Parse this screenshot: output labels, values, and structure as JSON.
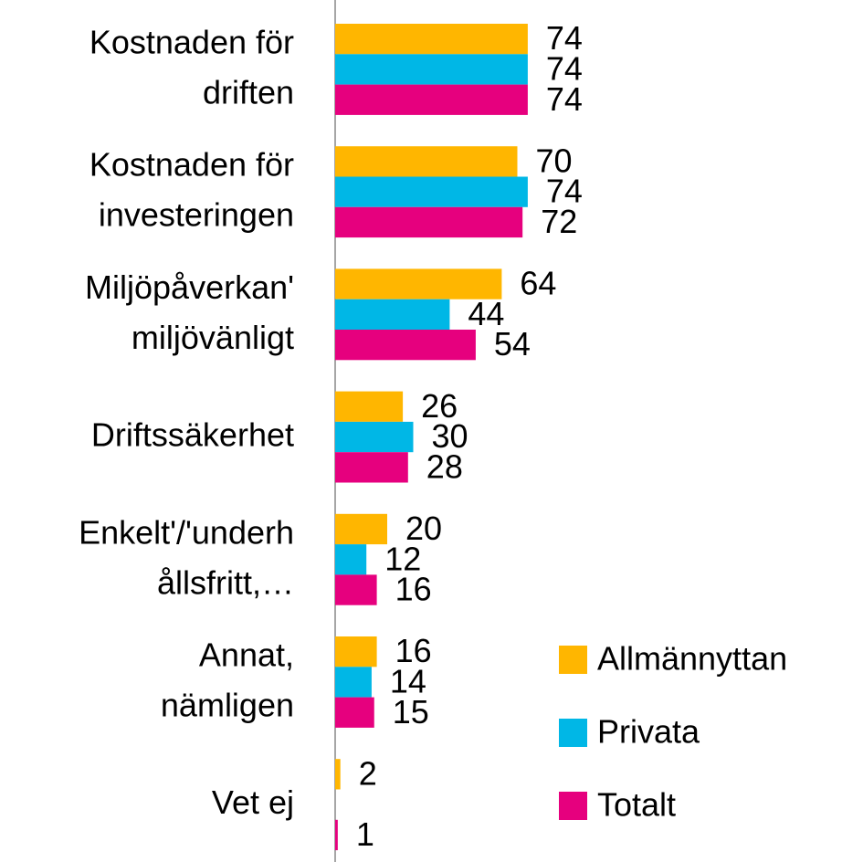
{
  "chart_data": {
    "type": "bar",
    "orientation": "horizontal",
    "categories": [
      "Kostnaden för\ndriften",
      "Kostnaden för\ninvesteringen",
      "Miljöpåverkan'\nmiljövänligt",
      "Driftssäkerhet",
      "Enkelt'/'underh\nållsfritt,…",
      "Annat,\nnämligen",
      "Vet ej"
    ],
    "series": [
      {
        "name": "Allmännyttan",
        "color": "#ffb600",
        "values": [
          74,
          70,
          64,
          26,
          20,
          16,
          2
        ]
      },
      {
        "name": "Privata",
        "color": "#00b7e6",
        "values": [
          74,
          74,
          44,
          30,
          12,
          14,
          null
        ]
      },
      {
        "name": "Totalt",
        "color": "#e6007e",
        "values": [
          74,
          72,
          54,
          28,
          16,
          15,
          1
        ]
      }
    ],
    "xlim": [
      0,
      100
    ],
    "legend": "lower right"
  }
}
